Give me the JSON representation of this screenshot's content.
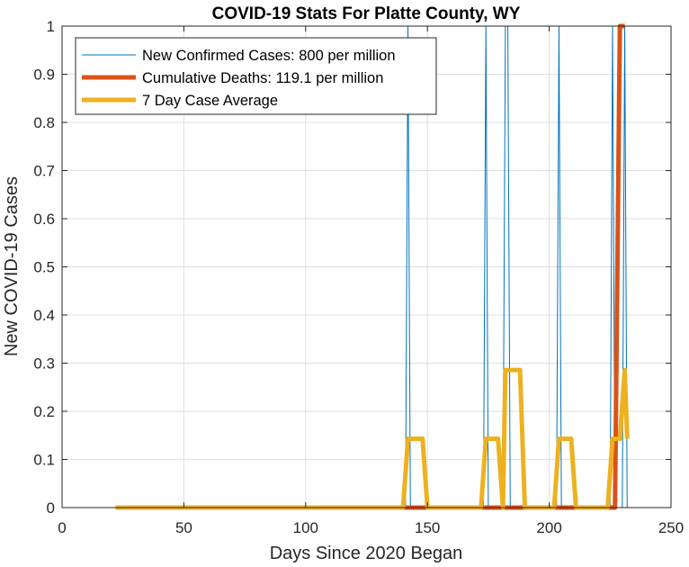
{
  "chart_data": {
    "type": "line",
    "title": "COVID-19 Stats For Platte County, WY",
    "xlabel": "Days Since 2020 Began",
    "ylabel": "New COVID-19 Cases",
    "xlim": [
      0,
      250
    ],
    "ylim": [
      0,
      1
    ],
    "xticks": [
      0,
      50,
      100,
      150,
      200,
      250
    ],
    "yticks": [
      0,
      0.1,
      0.2,
      0.3,
      0.4,
      0.5,
      0.6,
      0.7,
      0.8,
      0.9,
      1
    ],
    "grid": true,
    "legend_position": "top-left",
    "series": [
      {
        "name": "New Confirmed Cases: 800 per million",
        "color": "#0072bd",
        "points": [
          [
            22,
            0
          ],
          [
            141,
            0
          ],
          [
            142,
            1
          ],
          [
            143,
            0
          ],
          [
            173,
            0
          ],
          [
            174,
            1
          ],
          [
            175,
            0
          ],
          [
            181,
            0
          ],
          [
            182,
            1
          ],
          [
            183,
            1
          ],
          [
            184,
            0
          ],
          [
            203,
            0
          ],
          [
            204,
            1
          ],
          [
            205,
            0
          ],
          [
            225,
            0
          ],
          [
            226,
            1
          ],
          [
            227,
            0
          ],
          [
            230,
            0
          ],
          [
            231,
            1
          ],
          [
            232,
            0
          ]
        ]
      },
      {
        "name": "Cumulative Deaths: 119.1 per million",
        "color": "#d95319",
        "points": [
          [
            22,
            0
          ],
          [
            227,
            0
          ],
          [
            228,
            0.5
          ],
          [
            229,
            1
          ],
          [
            231,
            1
          ]
        ]
      },
      {
        "name": "7 Day Case Average",
        "color": "#edb120",
        "points": [
          [
            22,
            0
          ],
          [
            140,
            0
          ],
          [
            142,
            0.1429
          ],
          [
            148,
            0.1429
          ],
          [
            150,
            0
          ],
          [
            172,
            0
          ],
          [
            174,
            0.1429
          ],
          [
            179,
            0.1429
          ],
          [
            181,
            0
          ],
          [
            182,
            0.2857
          ],
          [
            188,
            0.2857
          ],
          [
            190,
            0
          ],
          [
            202,
            0
          ],
          [
            204,
            0.1429
          ],
          [
            209,
            0.1429
          ],
          [
            211,
            0
          ],
          [
            224,
            0
          ],
          [
            226,
            0.1429
          ],
          [
            229,
            0.1429
          ],
          [
            231,
            0.2857
          ],
          [
            232,
            0.1429
          ]
        ]
      }
    ]
  }
}
